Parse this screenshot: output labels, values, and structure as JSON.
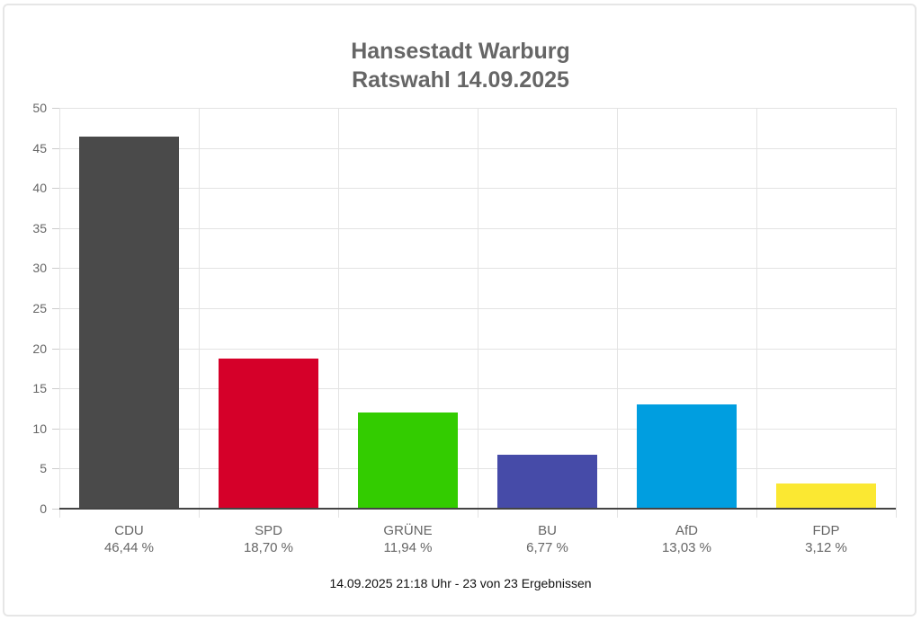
{
  "chart_data": {
    "type": "bar",
    "title": "Hansestadt Warburg",
    "subtitle": "Ratswahl 14.09.2025",
    "categories": [
      "CDU",
      "SPD",
      "GRÜNE",
      "BU",
      "AfD",
      "FDP"
    ],
    "values": [
      46.44,
      18.7,
      11.94,
      6.77,
      13.03,
      3.12
    ],
    "value_labels": [
      "46,44 %",
      "18,70 %",
      "11,94 %",
      "6,77 %",
      "13,03 %",
      "3,12 %"
    ],
    "colors": [
      "#4a4a4a",
      "#d50029",
      "#33cc00",
      "#464ba8",
      "#009ee0",
      "#fbe832"
    ],
    "xlabel": "",
    "ylabel": "",
    "ylim": [
      0,
      50
    ],
    "yticks": [
      0,
      5,
      10,
      15,
      20,
      25,
      30,
      35,
      40,
      45,
      50
    ],
    "grid": true,
    "legend": "none",
    "footer": "14.09.2025 21:18 Uhr - 23 von 23 Ergebnissen"
  }
}
